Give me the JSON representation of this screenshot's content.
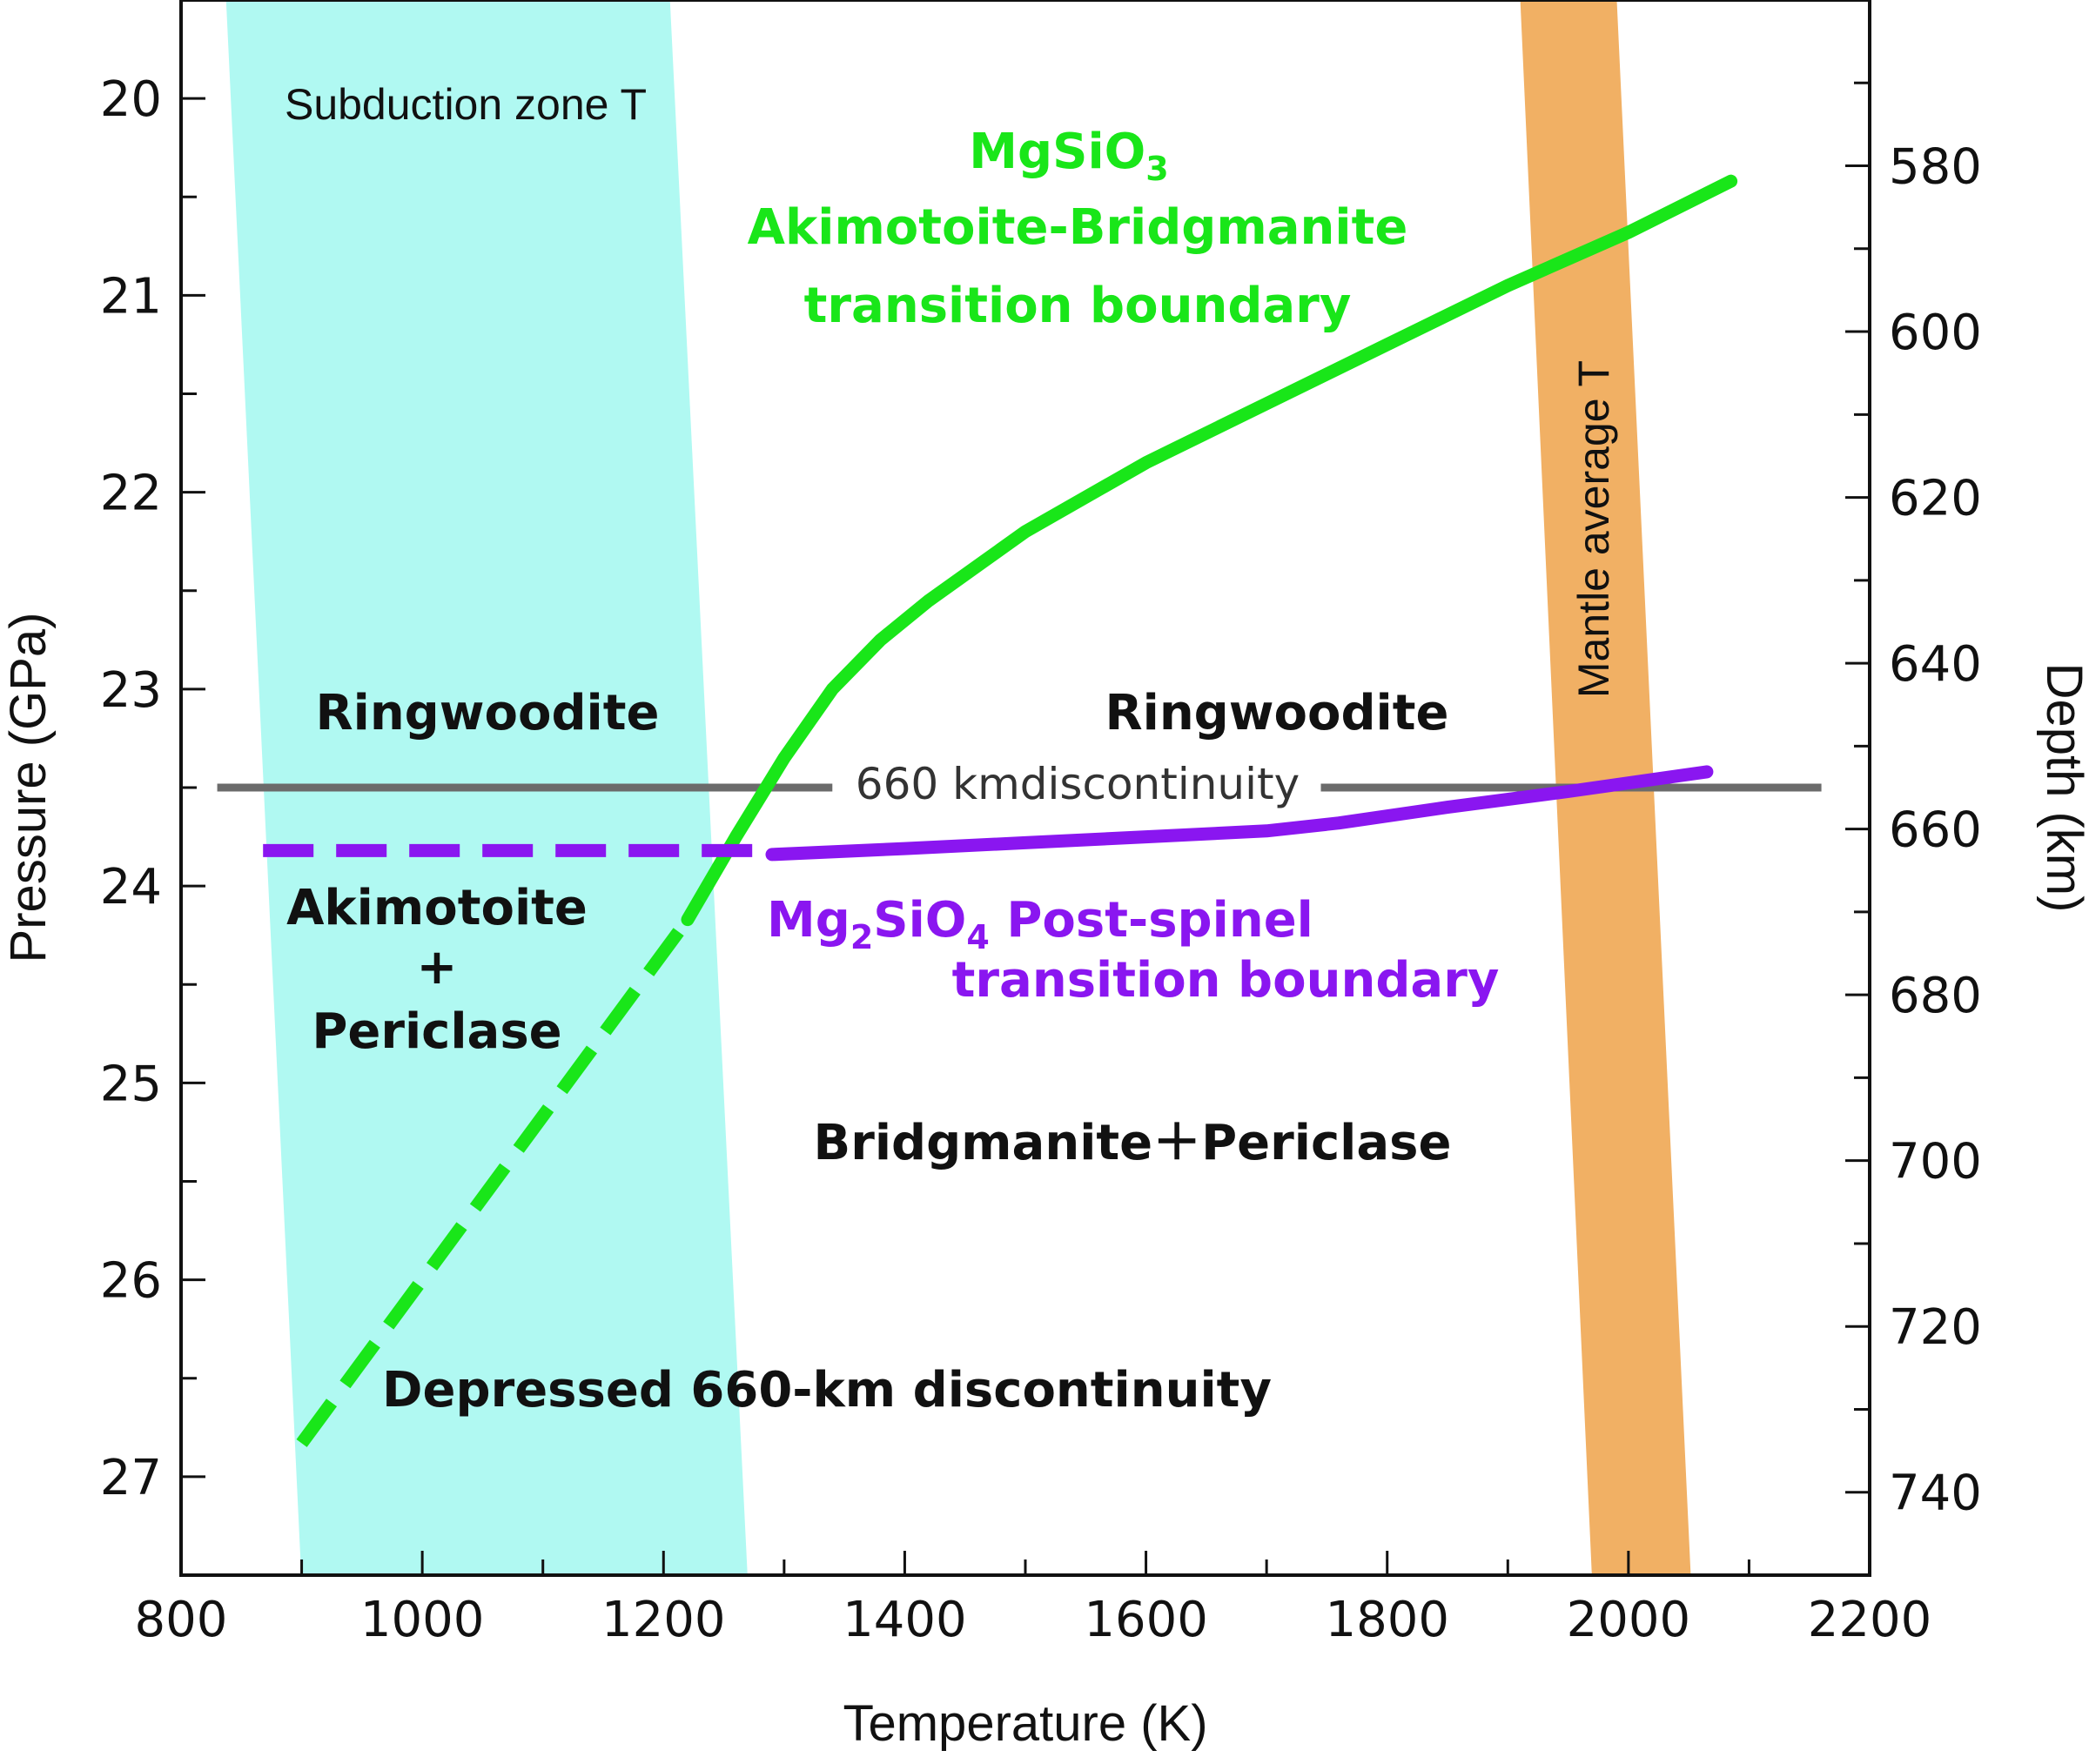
{
  "chart_data": {
    "type": "line",
    "x_axis": {
      "label": "Temperature (K)",
      "range": [
        800,
        2200
      ],
      "ticks": [
        800,
        1000,
        1200,
        1400,
        1600,
        1800,
        2000,
        2200
      ],
      "minor_step": 100
    },
    "y_axis_left": {
      "label": "Pressure (GPa)",
      "range": [
        19.5,
        27.5
      ],
      "inverted": true,
      "ticks": [
        20,
        21,
        22,
        23,
        24,
        25,
        26,
        27
      ],
      "minor_step": 0.5
    },
    "y_axis_right": {
      "label": "Depth (km)",
      "range": [
        560,
        750
      ],
      "inverted": true,
      "ticks": [
        580,
        600,
        620,
        640,
        660,
        680,
        700,
        720,
        740
      ],
      "minor_step": 10
    },
    "bands": [
      {
        "name": "Subduction zone T",
        "color": "#b0f9f2",
        "top_range": [
          837,
          1205
        ],
        "bottom_range": [
          900,
          1270
        ]
      },
      {
        "name": "Mantle average T",
        "color": "#f1b064",
        "top_range": [
          1910,
          1990
        ],
        "bottom_range": [
          1970,
          2052
        ]
      }
    ],
    "series": [
      {
        "name": "MgSiO3 Akimotoite-Bridgmanite transition boundary",
        "color": "#19e619",
        "style": "solid",
        "x": [
          1220,
          1260,
          1300,
          1340,
          1380,
          1420,
          1500,
          1600,
          1700,
          1800,
          1900,
          2000,
          2085
        ],
        "y": [
          24.17,
          23.75,
          23.35,
          23.0,
          22.75,
          22.55,
          22.2,
          21.85,
          21.55,
          21.25,
          20.95,
          20.68,
          20.42
        ]
      },
      {
        "name": "MgSiO3 boundary extrapolation",
        "color": "#19e619",
        "style": "dashed",
        "x": [
          900,
          1220
        ],
        "y": [
          26.83,
          24.17
        ]
      },
      {
        "name": "Mg2SiO4 Post-spinel transition boundary",
        "color": "#8a16f0",
        "style": "solid",
        "x": [
          1290,
          1400,
          1500,
          1600,
          1700,
          1760,
          1850,
          1950,
          2065
        ],
        "y": [
          23.84,
          23.81,
          23.78,
          23.75,
          23.72,
          23.68,
          23.6,
          23.52,
          23.42
        ]
      },
      {
        "name": "Mg2SiO4 boundary extrapolation",
        "color": "#8a16f0",
        "style": "dashed",
        "x": [
          868,
          1290
        ],
        "y": [
          23.82,
          23.82
        ]
      }
    ],
    "discontinuity_line": {
      "color": "#6b6b6b",
      "y": 23.5,
      "segments": [
        [
          830,
          1340
        ],
        [
          1745,
          2160
        ]
      ]
    }
  },
  "labels": {
    "subduction_zone": "Subduction zone T",
    "mantle_average": "Mantle average T",
    "green_line1_main": "MgSiO",
    "green_line1_sub": "3",
    "green_line2": "Akimotoite-Bridgmanite",
    "green_line3": "transition boundary",
    "purple_line1_pre": "Mg",
    "purple_line1_sub1": "2",
    "purple_line1_mid": "SiO",
    "purple_line1_sub2": "4",
    "purple_line1_post": " Post-spinel",
    "purple_line2": "transition boundary",
    "discontinuity": "660 kmdiscontinuity",
    "ringwoodite_left": "Ringwoodite",
    "ringwoodite_right": "Ringwoodite",
    "akimotoite": "Akimotoite",
    "plus": "+",
    "periclase": "Periclase",
    "bridgmanite_periclase": "Bridgmanite＋Periclase",
    "depressed": "Depressed 660-km discontinuity"
  },
  "colors": {
    "subduction_band": "#b0f9f2",
    "mantle_band": "#f1b064",
    "green": "#19e619",
    "purple": "#8a16f0",
    "discontinuity": "#6b6b6b"
  }
}
